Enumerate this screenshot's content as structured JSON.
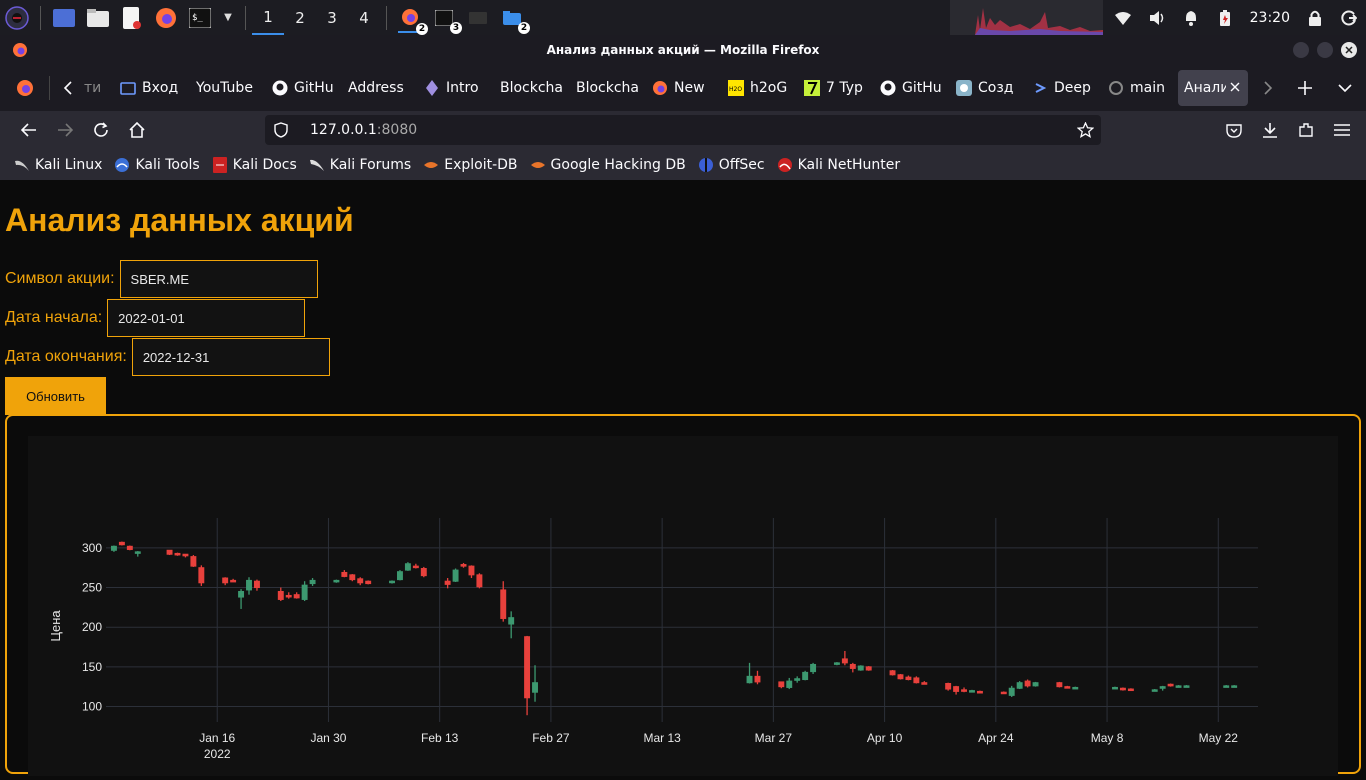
{
  "taskbar": {
    "workspaces": [
      "1",
      "2",
      "3",
      "4"
    ],
    "active_workspace": "1",
    "badges": {
      "firefox": "2",
      "terminal": "3",
      "files": "2"
    },
    "clock": "23:20"
  },
  "window": {
    "title": "Анализ данных акций — Mozilla Firefox"
  },
  "tabs": [
    {
      "label": "ти",
      "icon": "tab-icon"
    },
    {
      "label": "Вход",
      "icon": "folder-icon"
    },
    {
      "label": "YouTube",
      "icon": "none"
    },
    {
      "label": "GitHu",
      "icon": "github-icon"
    },
    {
      "label": "Address",
      "icon": "none"
    },
    {
      "label": "Intro",
      "icon": "ethereum-icon"
    },
    {
      "label": "Blockcha",
      "icon": "none"
    },
    {
      "label": "Blockcha",
      "icon": "none"
    },
    {
      "label": "New",
      "icon": "firefox-icon"
    },
    {
      "label": "h2oG",
      "icon": "h2o-icon"
    },
    {
      "label": "7 Typ",
      "icon": "seven-icon"
    },
    {
      "label": "GitHu",
      "icon": "github-icon"
    },
    {
      "label": "Созд",
      "icon": "app-icon"
    },
    {
      "label": "Deep",
      "icon": "deep-icon"
    },
    {
      "label": "main",
      "icon": "openai-icon"
    },
    {
      "label": "Анали",
      "icon": "none",
      "active": true
    }
  ],
  "url": {
    "host": "127.0.0.1",
    "port": ":8080"
  },
  "bookmarks": [
    {
      "label": "Kali Linux",
      "icon": "kali-icon"
    },
    {
      "label": "Kali Tools",
      "icon": "kali-tools-icon"
    },
    {
      "label": "Kali Docs",
      "icon": "kali-docs-icon"
    },
    {
      "label": "Kali Forums",
      "icon": "kali-forums-icon"
    },
    {
      "label": "Exploit-DB",
      "icon": "exploit-db-icon"
    },
    {
      "label": "Google Hacking DB",
      "icon": "ghdb-icon"
    },
    {
      "label": "OffSec",
      "icon": "offsec-icon"
    },
    {
      "label": "Kali NetHunter",
      "icon": "nethunter-icon"
    }
  ],
  "page": {
    "heading": "Анализ данных акций",
    "symbol_label": "Символ акции:",
    "symbol_value": "SBER.ME",
    "start_label": "Дата начала:",
    "start_value": "2022-01-01",
    "end_label": "Дата окончания:",
    "end_value": "2022-12-31",
    "refresh_label": "Обновить"
  },
  "colors": {
    "accent": "#f0a30a",
    "up": "#3d9970",
    "down": "#e8413c"
  },
  "chart_data": {
    "type": "candlestick",
    "ylabel": "Цена",
    "ylim": [
      88,
      315
    ],
    "y_ticks": [
      100,
      150,
      200,
      250,
      300
    ],
    "x_ticks": [
      {
        "label": "Jan 16",
        "sub": "2022",
        "day": 15
      },
      {
        "label": "Jan 30",
        "sub": "",
        "day": 29
      },
      {
        "label": "Feb 13",
        "sub": "",
        "day": 43
      },
      {
        "label": "Feb 27",
        "sub": "",
        "day": 57
      },
      {
        "label": "Mar 13",
        "sub": "",
        "day": 71
      },
      {
        "label": "Mar 27",
        "sub": "",
        "day": 85
      },
      {
        "label": "Apr 10",
        "sub": "",
        "day": 99
      },
      {
        "label": "Apr 24",
        "sub": "",
        "day": 113
      },
      {
        "label": "May 8",
        "sub": "",
        "day": 127
      },
      {
        "label": "May 22",
        "sub": "",
        "day": 141
      }
    ],
    "candles": [
      {
        "d": 2,
        "o": 297,
        "h": 303,
        "l": 295,
        "c": 302
      },
      {
        "d": 3,
        "o": 307,
        "h": 308,
        "l": 303,
        "c": 304
      },
      {
        "d": 4,
        "o": 302,
        "h": 303,
        "l": 297,
        "c": 298
      },
      {
        "d": 5,
        "o": 294,
        "h": 296,
        "l": 289,
        "c": 295
      },
      {
        "d": 9,
        "o": 297,
        "h": 297,
        "l": 291,
        "c": 292
      },
      {
        "d": 10,
        "o": 293,
        "h": 294,
        "l": 290,
        "c": 292
      },
      {
        "d": 11,
        "o": 292,
        "h": 292,
        "l": 288,
        "c": 290
      },
      {
        "d": 12,
        "o": 289,
        "h": 291,
        "l": 276,
        "c": 277
      },
      {
        "d": 13,
        "o": 275,
        "h": 278,
        "l": 252,
        "c": 256
      },
      {
        "d": 16,
        "o": 262,
        "h": 263,
        "l": 253,
        "c": 256
      },
      {
        "d": 17,
        "o": 259,
        "h": 261,
        "l": 257,
        "c": 258
      },
      {
        "d": 18,
        "o": 238,
        "h": 248,
        "l": 223,
        "c": 245
      },
      {
        "d": 19,
        "o": 247,
        "h": 263,
        "l": 241,
        "c": 259
      },
      {
        "d": 20,
        "o": 258,
        "h": 260,
        "l": 246,
        "c": 250
      },
      {
        "d": 23,
        "o": 245,
        "h": 250,
        "l": 233,
        "c": 235
      },
      {
        "d": 24,
        "o": 240,
        "h": 244,
        "l": 236,
        "c": 239
      },
      {
        "d": 25,
        "o": 241,
        "h": 244,
        "l": 236,
        "c": 237
      },
      {
        "d": 26,
        "o": 235,
        "h": 258,
        "l": 233,
        "c": 253
      },
      {
        "d": 27,
        "o": 255,
        "h": 262,
        "l": 252,
        "c": 259
      },
      {
        "d": 30,
        "o": 258,
        "h": 260,
        "l": 256,
        "c": 259
      },
      {
        "d": 31,
        "o": 269,
        "h": 272,
        "l": 263,
        "c": 264
      },
      {
        "d": 32,
        "o": 266,
        "h": 267,
        "l": 258,
        "c": 260
      },
      {
        "d": 33,
        "o": 261,
        "h": 263,
        "l": 253,
        "c": 256
      },
      {
        "d": 34,
        "o": 258,
        "h": 259,
        "l": 254,
        "c": 255
      },
      {
        "d": 37,
        "o": 257,
        "h": 259,
        "l": 255,
        "c": 258
      },
      {
        "d": 38,
        "o": 260,
        "h": 272,
        "l": 259,
        "c": 270
      },
      {
        "d": 39,
        "o": 272,
        "h": 282,
        "l": 271,
        "c": 280
      },
      {
        "d": 40,
        "o": 277,
        "h": 280,
        "l": 274,
        "c": 276
      },
      {
        "d": 41,
        "o": 274,
        "h": 276,
        "l": 263,
        "c": 265
      },
      {
        "d": 44,
        "o": 258,
        "h": 262,
        "l": 249,
        "c": 254
      },
      {
        "d": 45,
        "o": 258,
        "h": 274,
        "l": 257,
        "c": 272
      },
      {
        "d": 46,
        "o": 279,
        "h": 281,
        "l": 275,
        "c": 277
      },
      {
        "d": 47,
        "o": 277,
        "h": 278,
        "l": 262,
        "c": 266
      },
      {
        "d": 48,
        "o": 266,
        "h": 268,
        "l": 249,
        "c": 251
      },
      {
        "d": 51,
        "o": 247,
        "h": 258,
        "l": 207,
        "c": 211
      },
      {
        "d": 52,
        "o": 204,
        "h": 220,
        "l": 186,
        "c": 212
      },
      {
        "d": 54,
        "o": 188,
        "h": 189,
        "l": 89,
        "c": 111
      },
      {
        "d": 55,
        "o": 118,
        "h": 152,
        "l": 106,
        "c": 130
      },
      {
        "d": 82,
        "o": 130,
        "h": 155,
        "l": 129,
        "c": 138
      },
      {
        "d": 83,
        "o": 138,
        "h": 145,
        "l": 128,
        "c": 131
      },
      {
        "d": 86,
        "o": 131,
        "h": 131,
        "l": 123,
        "c": 125
      },
      {
        "d": 87,
        "o": 124,
        "h": 136,
        "l": 122,
        "c": 132
      },
      {
        "d": 88,
        "o": 133,
        "h": 138,
        "l": 130,
        "c": 135
      },
      {
        "d": 89,
        "o": 134,
        "h": 145,
        "l": 133,
        "c": 143
      },
      {
        "d": 90,
        "o": 144,
        "h": 155,
        "l": 141,
        "c": 153
      },
      {
        "d": 93,
        "o": 154,
        "h": 156,
        "l": 152,
        "c": 155
      },
      {
        "d": 94,
        "o": 160,
        "h": 170,
        "l": 152,
        "c": 155
      },
      {
        "d": 95,
        "o": 153,
        "h": 155,
        "l": 143,
        "c": 148
      },
      {
        "d": 96,
        "o": 146,
        "h": 152,
        "l": 145,
        "c": 151
      },
      {
        "d": 97,
        "o": 150,
        "h": 151,
        "l": 145,
        "c": 146
      },
      {
        "d": 100,
        "o": 145,
        "h": 146,
        "l": 139,
        "c": 140
      },
      {
        "d": 101,
        "o": 140,
        "h": 141,
        "l": 134,
        "c": 135
      },
      {
        "d": 102,
        "o": 137,
        "h": 139,
        "l": 133,
        "c": 134
      },
      {
        "d": 103,
        "o": 136,
        "h": 138,
        "l": 129,
        "c": 130
      },
      {
        "d": 104,
        "o": 130,
        "h": 132,
        "l": 128,
        "c": 128
      },
      {
        "d": 107,
        "o": 129,
        "h": 130,
        "l": 120,
        "c": 122
      },
      {
        "d": 108,
        "o": 125,
        "h": 126,
        "l": 115,
        "c": 119
      },
      {
        "d": 109,
        "o": 121,
        "h": 124,
        "l": 118,
        "c": 120
      },
      {
        "d": 110,
        "o": 120,
        "h": 121,
        "l": 119,
        "c": 120
      },
      {
        "d": 111,
        "o": 119,
        "h": 120,
        "l": 117,
        "c": 117
      },
      {
        "d": 114,
        "o": 118,
        "h": 119,
        "l": 116,
        "c": 117
      },
      {
        "d": 115,
        "o": 114,
        "h": 126,
        "l": 112,
        "c": 123
      },
      {
        "d": 116,
        "o": 123,
        "h": 132,
        "l": 122,
        "c": 130
      },
      {
        "d": 117,
        "o": 132,
        "h": 134,
        "l": 124,
        "c": 126
      },
      {
        "d": 118,
        "o": 126,
        "h": 131,
        "l": 125,
        "c": 130
      },
      {
        "d": 121,
        "o": 130,
        "h": 131,
        "l": 124,
        "c": 125
      },
      {
        "d": 122,
        "o": 125,
        "h": 126,
        "l": 123,
        "c": 124
      },
      {
        "d": 123,
        "o": 124,
        "h": 125,
        "l": 123,
        "c": 124
      },
      {
        "d": 128,
        "o": 123,
        "h": 125,
        "l": 122,
        "c": 124
      },
      {
        "d": 129,
        "o": 123,
        "h": 124,
        "l": 120,
        "c": 121
      },
      {
        "d": 130,
        "o": 122,
        "h": 123,
        "l": 120,
        "c": 121
      },
      {
        "d": 133,
        "o": 121,
        "h": 122,
        "l": 120,
        "c": 121
      },
      {
        "d": 134,
        "o": 123,
        "h": 126,
        "l": 120,
        "c": 125
      },
      {
        "d": 135,
        "o": 128,
        "h": 129,
        "l": 125,
        "c": 126
      },
      {
        "d": 136,
        "o": 126,
        "h": 127,
        "l": 125,
        "c": 126
      },
      {
        "d": 137,
        "o": 126,
        "h": 127,
        "l": 125,
        "c": 126
      },
      {
        "d": 142,
        "o": 126,
        "h": 127,
        "l": 125,
        "c": 126
      },
      {
        "d": 143,
        "o": 126,
        "h": 127,
        "l": 125,
        "c": 126
      }
    ]
  }
}
